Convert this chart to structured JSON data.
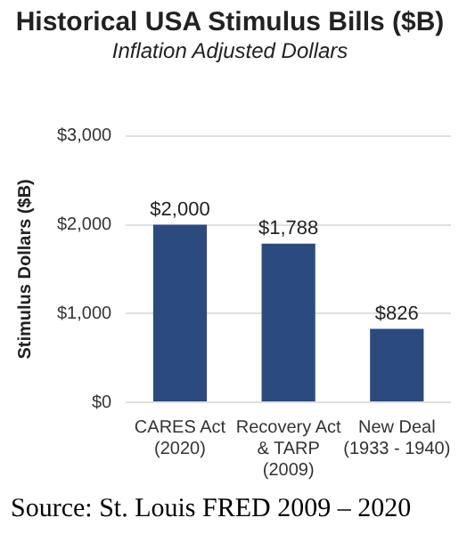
{
  "chart_data": {
    "type": "bar",
    "title": "Historical USA Stimulus Bills ($B)",
    "subtitle": "Inflation Adjusted Dollars",
    "ylabel": "Stimulus Dollars ($B)",
    "categories": [
      "CARES Act\n(2020)",
      "Recovery Act\n& TARP\n(2009)",
      "New Deal\n(1933 - 1940)"
    ],
    "values": [
      2000,
      1788,
      826
    ],
    "value_labels": [
      "$2,000",
      "$1,788",
      "$826"
    ],
    "color": "#2b4a7e",
    "ylim": [
      0,
      3000
    ],
    "yticks": [
      {
        "value": 0,
        "label": "$0"
      },
      {
        "value": 1000,
        "label": "$1,000"
      },
      {
        "value": 2000,
        "label": "$2,000"
      },
      {
        "value": 3000,
        "label": "$3,000"
      }
    ],
    "grid": "y",
    "legend": false,
    "annotations": [
      "Source: St. Louis FRED 2009 – 2020"
    ]
  }
}
